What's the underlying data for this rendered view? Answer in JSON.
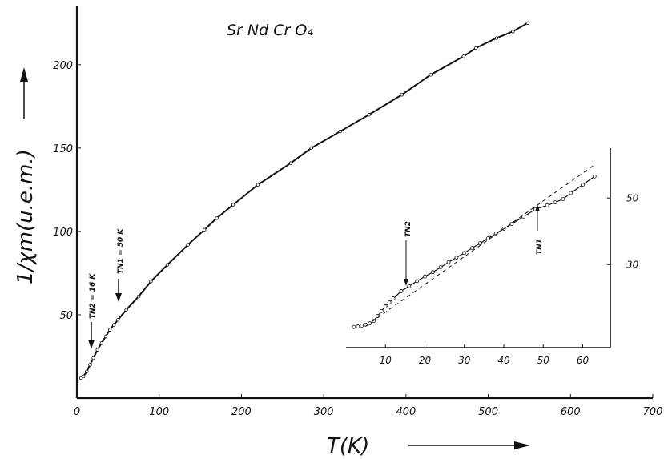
{
  "chart_data": [
    {
      "type": "line",
      "title": "Sr Nd Cr O₄",
      "xlabel": "T(K)",
      "ylabel": "1/χm(u.e.m.)",
      "xlim": [
        0,
        700
      ],
      "ylim": [
        0,
        235
      ],
      "x_ticks": [
        "0",
        "100",
        "200",
        "300",
        "400",
        "500",
        "600",
        "700"
      ],
      "y_ticks": [
        "50",
        "100",
        "150",
        "200"
      ],
      "series": [
        {
          "x": [
            5,
            8,
            12,
            16,
            20,
            25,
            30,
            35,
            40,
            45,
            50,
            60,
            75,
            90,
            110,
            135,
            155,
            170,
            190,
            220,
            260,
            285,
            320,
            355,
            395,
            430,
            470,
            485,
            510,
            530,
            548
          ],
          "values": [
            12,
            13,
            16,
            20,
            24,
            29,
            33,
            37,
            41,
            44,
            47,
            53,
            61,
            70,
            80,
            92,
            101,
            108,
            116,
            128,
            141,
            150,
            160,
            170,
            182,
            194,
            205,
            210,
            216,
            220,
            225
          ]
        }
      ],
      "annotations": [
        {
          "text": "TN2 = 16 K",
          "x": 16
        },
        {
          "text": "TN1 = 50 K",
          "x": 50
        }
      ],
      "grid": false
    },
    {
      "type": "line",
      "inset": true,
      "x_ticks": [
        "10",
        "20",
        "30",
        "40",
        "50",
        "60"
      ],
      "y_ticks": [
        "30",
        "50"
      ],
      "xlim": [
        0,
        67
      ],
      "ylim": [
        5,
        65
      ],
      "series": [
        {
          "x": [
            2,
            3,
            4,
            5,
            6,
            7,
            8,
            9,
            10,
            11,
            12,
            14,
            16,
            18,
            20,
            22,
            24,
            26,
            28,
            30,
            32,
            34,
            36,
            38,
            40,
            42,
            45,
            48,
            51,
            53,
            55,
            57,
            60,
            63
          ],
          "values": [
            11.2,
            11.4,
            11.6,
            11.9,
            12.3,
            13.0,
            14.5,
            16.0,
            17.4,
            18.6,
            19.8,
            22.0,
            23.5,
            25.0,
            26.4,
            27.7,
            29.2,
            30.7,
            32.1,
            33.5,
            35.0,
            36.4,
            37.9,
            39.3,
            40.8,
            42.2,
            44.4,
            46.6,
            47.8,
            48.7,
            49.7,
            51.5,
            54.0,
            56.5
          ]
        },
        {
          "name": "",
          "style": "dashed",
          "x": [
            5,
            63
          ],
          "values": [
            11.5,
            60
          ]
        }
      ],
      "annotations": [
        {
          "text": "TN2",
          "x": 16
        },
        {
          "text": "TN1",
          "x": 50
        }
      ]
    }
  ]
}
